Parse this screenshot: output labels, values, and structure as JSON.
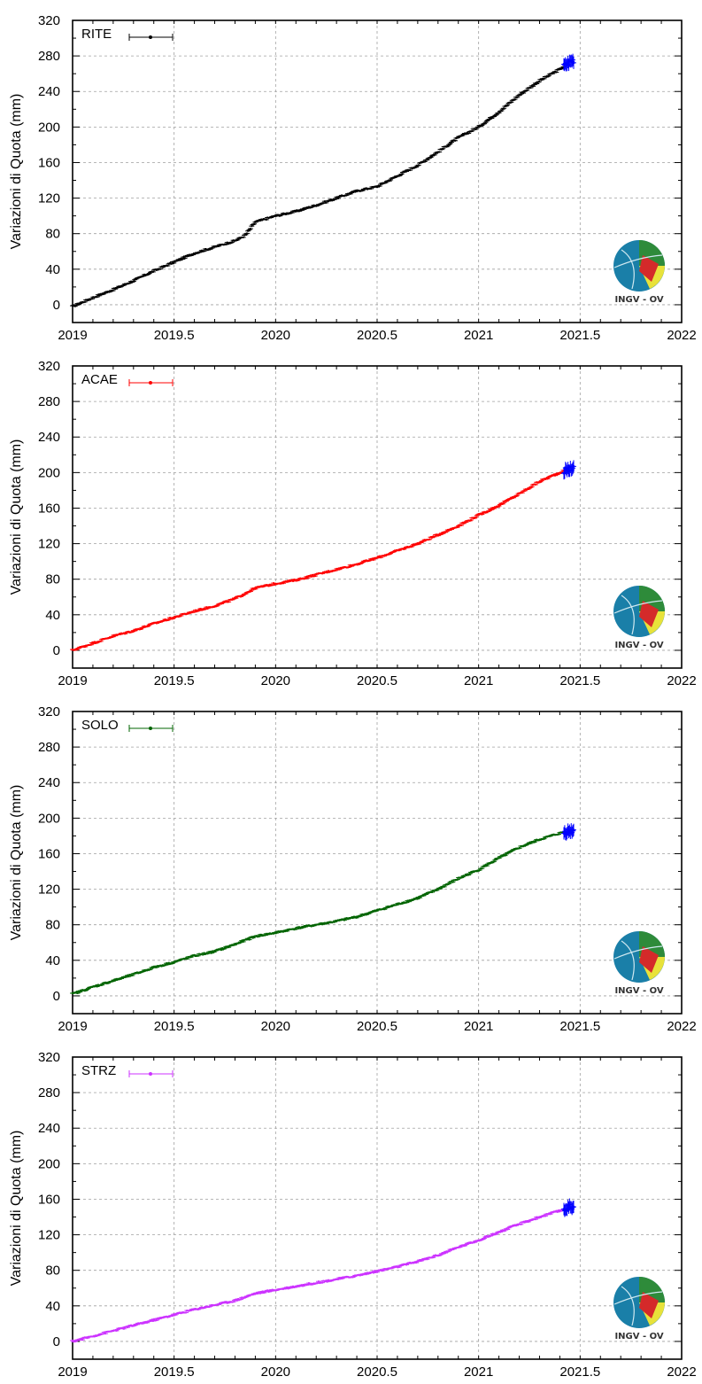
{
  "chart_data": [
    {
      "type": "scatter",
      "station": "RITE",
      "ylabel": "Variazioni di Quota (mm)",
      "xlim": [
        2019,
        2022
      ],
      "ylim": [
        -20,
        320
      ],
      "xticks": [
        "2019",
        "2019.5",
        "2020",
        "2020.5",
        "2021",
        "2021.5",
        "2022"
      ],
      "yticks": [
        "0",
        "40",
        "80",
        "120",
        "160",
        "200",
        "240",
        "280",
        "320"
      ],
      "grid": true,
      "legend": "top-left",
      "color": "#000000",
      "recent_color": "#0000ff",
      "series": [
        {
          "name": "RITE",
          "x": [
            2019.0,
            2019.1,
            2019.2,
            2019.3,
            2019.4,
            2019.5,
            2019.6,
            2019.7,
            2019.8,
            2019.85,
            2019.9,
            2020.0,
            2020.1,
            2020.2,
            2020.3,
            2020.4,
            2020.5,
            2020.6,
            2020.7,
            2020.8,
            2020.9,
            2021.0,
            2021.1,
            2021.2,
            2021.3,
            2021.4,
            2021.46
          ],
          "y": [
            -2,
            8,
            17,
            27,
            38,
            48,
            58,
            65,
            72,
            78,
            93,
            100,
            105,
            112,
            120,
            128,
            133,
            145,
            157,
            172,
            188,
            200,
            217,
            236,
            252,
            265,
            275
          ]
        }
      ]
    },
    {
      "type": "scatter",
      "station": "ACAE",
      "ylabel": "Variazioni di Quota (mm)",
      "xlim": [
        2019,
        2022
      ],
      "ylim": [
        -20,
        320
      ],
      "xticks": [
        "2019",
        "2019.5",
        "2020",
        "2020.5",
        "2021",
        "2021.5",
        "2022"
      ],
      "yticks": [
        "0",
        "40",
        "80",
        "120",
        "160",
        "200",
        "240",
        "280",
        "320"
      ],
      "grid": true,
      "legend": "top-left",
      "color": "#ff0000",
      "recent_color": "#0000ff",
      "series": [
        {
          "name": "ACAE",
          "x": [
            2019.0,
            2019.1,
            2019.2,
            2019.3,
            2019.4,
            2019.5,
            2019.6,
            2019.7,
            2019.8,
            2019.9,
            2020.0,
            2020.1,
            2020.2,
            2020.3,
            2020.4,
            2020.5,
            2020.6,
            2020.7,
            2020.8,
            2020.9,
            2021.0,
            2021.1,
            2021.2,
            2021.3,
            2021.4,
            2021.46
          ],
          "y": [
            0,
            8,
            16,
            22,
            30,
            37,
            44,
            50,
            58,
            70,
            75,
            79,
            85,
            91,
            97,
            104,
            112,
            120,
            130,
            140,
            152,
            163,
            176,
            190,
            200,
            205
          ]
        }
      ]
    },
    {
      "type": "scatter",
      "station": "SOLO",
      "ylabel": "Variazioni di Quota (mm)",
      "xlim": [
        2019,
        2022
      ],
      "ylim": [
        -20,
        320
      ],
      "xticks": [
        "2019",
        "2019.5",
        "2020",
        "2020.5",
        "2021",
        "2021.5",
        "2022"
      ],
      "yticks": [
        "0",
        "40",
        "80",
        "120",
        "160",
        "200",
        "240",
        "280",
        "320"
      ],
      "grid": true,
      "legend": "top-left",
      "color": "#006400",
      "recent_color": "#0000ff",
      "series": [
        {
          "name": "SOLO",
          "x": [
            2019.0,
            2019.1,
            2019.2,
            2019.3,
            2019.4,
            2019.5,
            2019.6,
            2019.7,
            2019.8,
            2019.9,
            2020.0,
            2020.1,
            2020.2,
            2020.3,
            2020.4,
            2020.5,
            2020.6,
            2020.7,
            2020.8,
            2020.9,
            2021.0,
            2021.1,
            2021.2,
            2021.3,
            2021.4,
            2021.46
          ],
          "y": [
            2,
            10,
            17,
            24,
            32,
            38,
            45,
            50,
            58,
            67,
            71,
            76,
            80,
            84,
            89,
            96,
            103,
            110,
            120,
            132,
            142,
            155,
            167,
            176,
            183,
            186
          ]
        }
      ]
    },
    {
      "type": "scatter",
      "station": "STRZ",
      "ylabel": "Variazioni di Quota (mm)",
      "xlim": [
        2019,
        2022
      ],
      "ylim": [
        -20,
        320
      ],
      "xticks": [
        "2019",
        "2019.5",
        "2020",
        "2020.5",
        "2021",
        "2021.5",
        "2022"
      ],
      "yticks": [
        "0",
        "40",
        "80",
        "120",
        "160",
        "200",
        "240",
        "280",
        "320"
      ],
      "grid": true,
      "legend": "top-left",
      "color": "#cc33ff",
      "recent_color": "#0000ff",
      "series": [
        {
          "name": "STRZ",
          "x": [
            2019.0,
            2019.1,
            2019.2,
            2019.3,
            2019.4,
            2019.5,
            2019.6,
            2019.7,
            2019.8,
            2019.9,
            2020.0,
            2020.1,
            2020.2,
            2020.3,
            2020.4,
            2020.5,
            2020.6,
            2020.7,
            2020.8,
            2020.9,
            2021.0,
            2021.1,
            2021.2,
            2021.3,
            2021.4,
            2021.46
          ],
          "y": [
            0,
            6,
            12,
            18,
            24,
            30,
            36,
            41,
            46,
            54,
            58,
            62,
            66,
            70,
            74,
            79,
            84,
            90,
            97,
            106,
            114,
            123,
            132,
            140,
            147,
            152
          ]
        }
      ]
    }
  ],
  "logo": {
    "text": "INGV - OV"
  }
}
